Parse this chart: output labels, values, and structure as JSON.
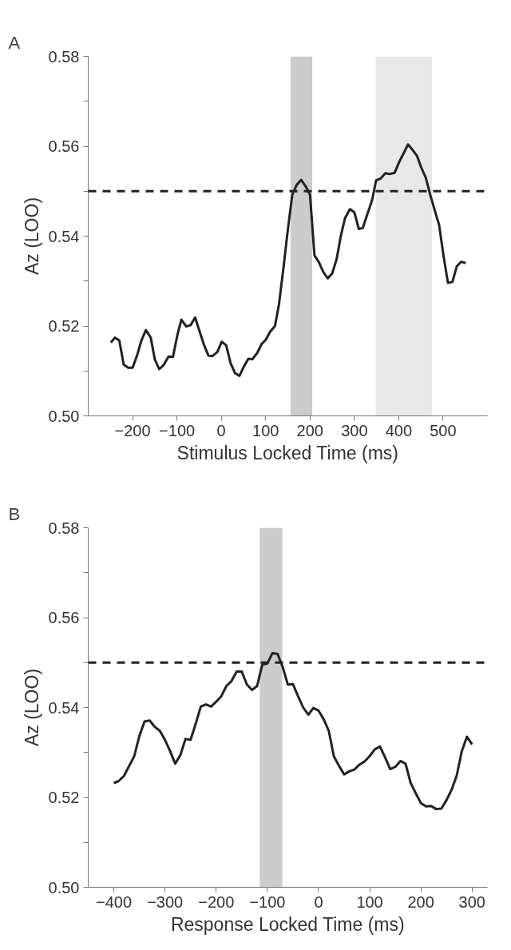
{
  "chart_data": [
    {
      "type": "line",
      "title": "A",
      "xlabel": "Stimulus Locked Time (ms)",
      "ylabel": "Az (LOO)",
      "xlim": [
        -300,
        600
      ],
      "xticks": [
        {
          "value": -200,
          "label": "−200"
        },
        {
          "value": -100,
          "label": "−100"
        },
        0,
        100,
        200,
        300,
        400,
        500
      ],
      "ylim": [
        0.5,
        0.58
      ],
      "yticks": [
        {
          "value": 0.5,
          "label": "0.50"
        },
        {
          "value": 0.51,
          "label": null
        },
        0.52,
        {
          "value": 0.53,
          "label": null
        },
        0.54,
        {
          "value": 0.55,
          "label": null
        },
        0.56,
        {
          "value": 0.57,
          "label": null
        },
        0.58
      ],
      "grid": false,
      "marker": "none",
      "line_style": "solid",
      "x": [
        -249,
        -240,
        -230,
        -220,
        -210,
        -200,
        -190,
        -180,
        -170,
        -159,
        -150,
        -140,
        -130,
        -119,
        -109,
        -99,
        -90,
        -79,
        -69,
        -59,
        -50,
        -39,
        -29,
        -20,
        -9,
        1,
        11,
        21,
        31,
        41,
        51,
        61,
        70,
        81,
        91,
        100,
        110,
        121,
        130,
        140,
        150,
        160,
        170,
        180,
        190,
        200,
        210,
        220,
        230,
        240,
        250,
        260,
        270,
        279,
        290,
        300,
        310,
        319,
        330,
        340,
        349,
        359,
        370,
        379,
        391,
        401,
        411,
        421,
        431,
        441,
        451,
        461,
        471,
        481,
        491,
        501,
        511,
        521,
        531,
        541,
        551
      ],
      "series": [
        {
          "color": "#222222",
          "values": [
            0.5163,
            0.5174,
            0.5168,
            0.5114,
            0.5107,
            0.5107,
            0.5134,
            0.5168,
            0.5191,
            0.5174,
            0.5126,
            0.5104,
            0.5113,
            0.5132,
            0.5131,
            0.518,
            0.5214,
            0.5199,
            0.5202,
            0.5219,
            0.5191,
            0.5158,
            0.5134,
            0.5133,
            0.5142,
            0.5165,
            0.5157,
            0.5117,
            0.5095,
            0.5089,
            0.511,
            0.5127,
            0.5126,
            0.514,
            0.516,
            0.5169,
            0.5187,
            0.52,
            0.5248,
            0.5328,
            0.5414,
            0.5492,
            0.5514,
            0.5525,
            0.5511,
            0.5492,
            0.5357,
            0.5342,
            0.532,
            0.5306,
            0.5317,
            0.5349,
            0.5403,
            0.544,
            0.546,
            0.5453,
            0.5416,
            0.5418,
            0.5451,
            0.548,
            0.5524,
            0.5528,
            0.554,
            0.5538,
            0.5541,
            0.5565,
            0.5584,
            0.5604,
            0.5592,
            0.5579,
            0.5552,
            0.553,
            0.5492,
            0.5458,
            0.5425,
            0.5356,
            0.5296,
            0.5298,
            0.5333,
            0.5343,
            0.534
          ]
        }
      ],
      "ref_lines": [
        {
          "axis": "y",
          "value": 0.55,
          "color": "#222222",
          "line_style": "dashed"
        }
      ],
      "bands": [
        {
          "axis": "x",
          "from": 156,
          "to": 205,
          "color": "#cccccc"
        },
        {
          "axis": "x",
          "from": 348,
          "to": 475,
          "color": "#e8e8e8"
        }
      ]
    },
    {
      "type": "line",
      "title": "B",
      "xlabel": "Response Locked Time (ms)",
      "ylabel": "Az (LOO)",
      "xlim": [
        -450,
        330
      ],
      "xticks": [
        {
          "value": -400,
          "label": "−400"
        },
        {
          "value": -300,
          "label": "−300"
        },
        {
          "value": -200,
          "label": "−200"
        },
        {
          "value": -100,
          "label": "−100"
        },
        0,
        100,
        200,
        300
      ],
      "ylim": [
        0.5,
        0.58
      ],
      "yticks": [
        {
          "value": 0.5,
          "label": "0.50"
        },
        {
          "value": 0.51,
          "label": null
        },
        0.52,
        {
          "value": 0.53,
          "label": null
        },
        0.54,
        {
          "value": 0.55,
          "label": null
        },
        0.56,
        {
          "value": 0.57,
          "label": null
        },
        0.58
      ],
      "grid": false,
      "marker": "none",
      "line_style": "solid",
      "x": [
        -400,
        -391,
        -380,
        -370,
        -360,
        -350,
        -340,
        -330,
        -320,
        -310,
        -300,
        -290,
        -280,
        -270,
        -260,
        -250,
        -240,
        -230,
        -220,
        -210,
        -200,
        -190,
        -180,
        -170,
        -160,
        -150,
        -140,
        -130,
        -120,
        -110,
        -100,
        -90,
        -80,
        -70,
        -60,
        -50,
        -40,
        -30,
        -20,
        -10,
        0,
        10,
        20,
        30,
        40,
        50,
        60,
        70,
        80,
        90,
        100,
        110,
        120,
        130,
        140,
        150,
        160,
        170,
        180,
        190,
        200,
        210,
        220,
        230,
        240,
        250,
        260,
        270,
        280,
        290,
        300
      ],
      "series": [
        {
          "color": "#222222",
          "values": [
            0.5232,
            0.5236,
            0.5248,
            0.527,
            0.5292,
            0.5337,
            0.5369,
            0.5371,
            0.5357,
            0.5348,
            0.5328,
            0.5303,
            0.5275,
            0.5294,
            0.533,
            0.5328,
            0.5364,
            0.5402,
            0.5407,
            0.5402,
            0.5413,
            0.5425,
            0.5448,
            0.5459,
            0.548,
            0.548,
            0.5451,
            0.5439,
            0.5448,
            0.5495,
            0.5498,
            0.5521,
            0.5519,
            0.549,
            0.5451,
            0.5452,
            0.5425,
            0.54,
            0.5384,
            0.5399,
            0.5393,
            0.5374,
            0.5348,
            0.5291,
            0.527,
            0.5251,
            0.5258,
            0.5262,
            0.5273,
            0.528,
            0.5292,
            0.5307,
            0.5313,
            0.5289,
            0.5263,
            0.5268,
            0.5281,
            0.5275,
            0.5232,
            0.5209,
            0.5187,
            0.518,
            0.5181,
            0.5174,
            0.5175,
            0.5194,
            0.5217,
            0.5249,
            0.5303,
            0.5335,
            0.5318
          ]
        }
      ],
      "ref_lines": [
        {
          "axis": "y",
          "value": 0.55,
          "color": "#222222",
          "line_style": "dashed"
        }
      ],
      "bands": [
        {
          "axis": "x",
          "from": -115,
          "to": -71,
          "color": "#cccccc"
        }
      ]
    }
  ]
}
